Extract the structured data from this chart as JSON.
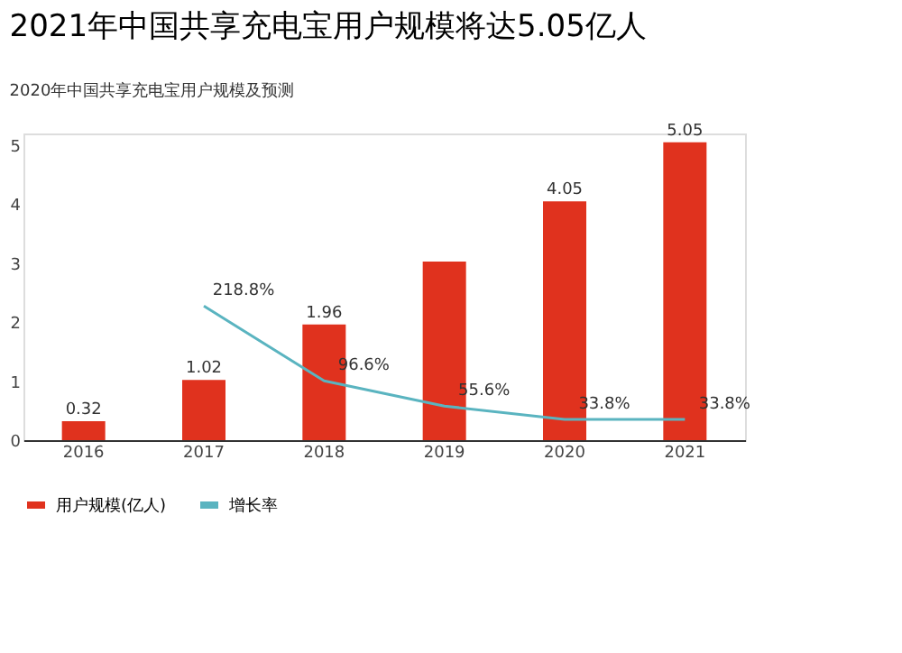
{
  "chart_data": {
    "type": "bar",
    "title": "2021年中国共享充电宝用户规模将达5.05亿人",
    "subtitle": "2020年中国共享充电宝用户规模及预测",
    "categories": [
      "2016",
      "2017",
      "2018",
      "2019",
      "2020",
      "2021"
    ],
    "series": [
      {
        "name": "用户规模(亿人)",
        "color": "#e0321e",
        "values": [
          0.32,
          1.02,
          1.96,
          3.03,
          4.05,
          5.05
        ],
        "value_labels": [
          "0.32",
          "1.02",
          "1.96",
          null,
          "4.05",
          "5.05"
        ]
      },
      {
        "name": "增长率",
        "type": "line",
        "axis": "y2",
        "color": "#5ab4c0",
        "values": [
          null,
          218.8,
          96.6,
          55.6,
          33.8,
          33.8
        ],
        "value_labels": [
          null,
          "218.8%",
          "96.6%",
          "55.6%",
          "33.8%",
          "33.8%"
        ]
      }
    ],
    "ylim": [
      0,
      5.2
    ],
    "yticks": [
      0,
      1,
      2,
      3,
      4,
      5
    ],
    "y2lim": [
      0,
      500
    ],
    "grid": false,
    "legend": "bottom",
    "marker": "none"
  }
}
